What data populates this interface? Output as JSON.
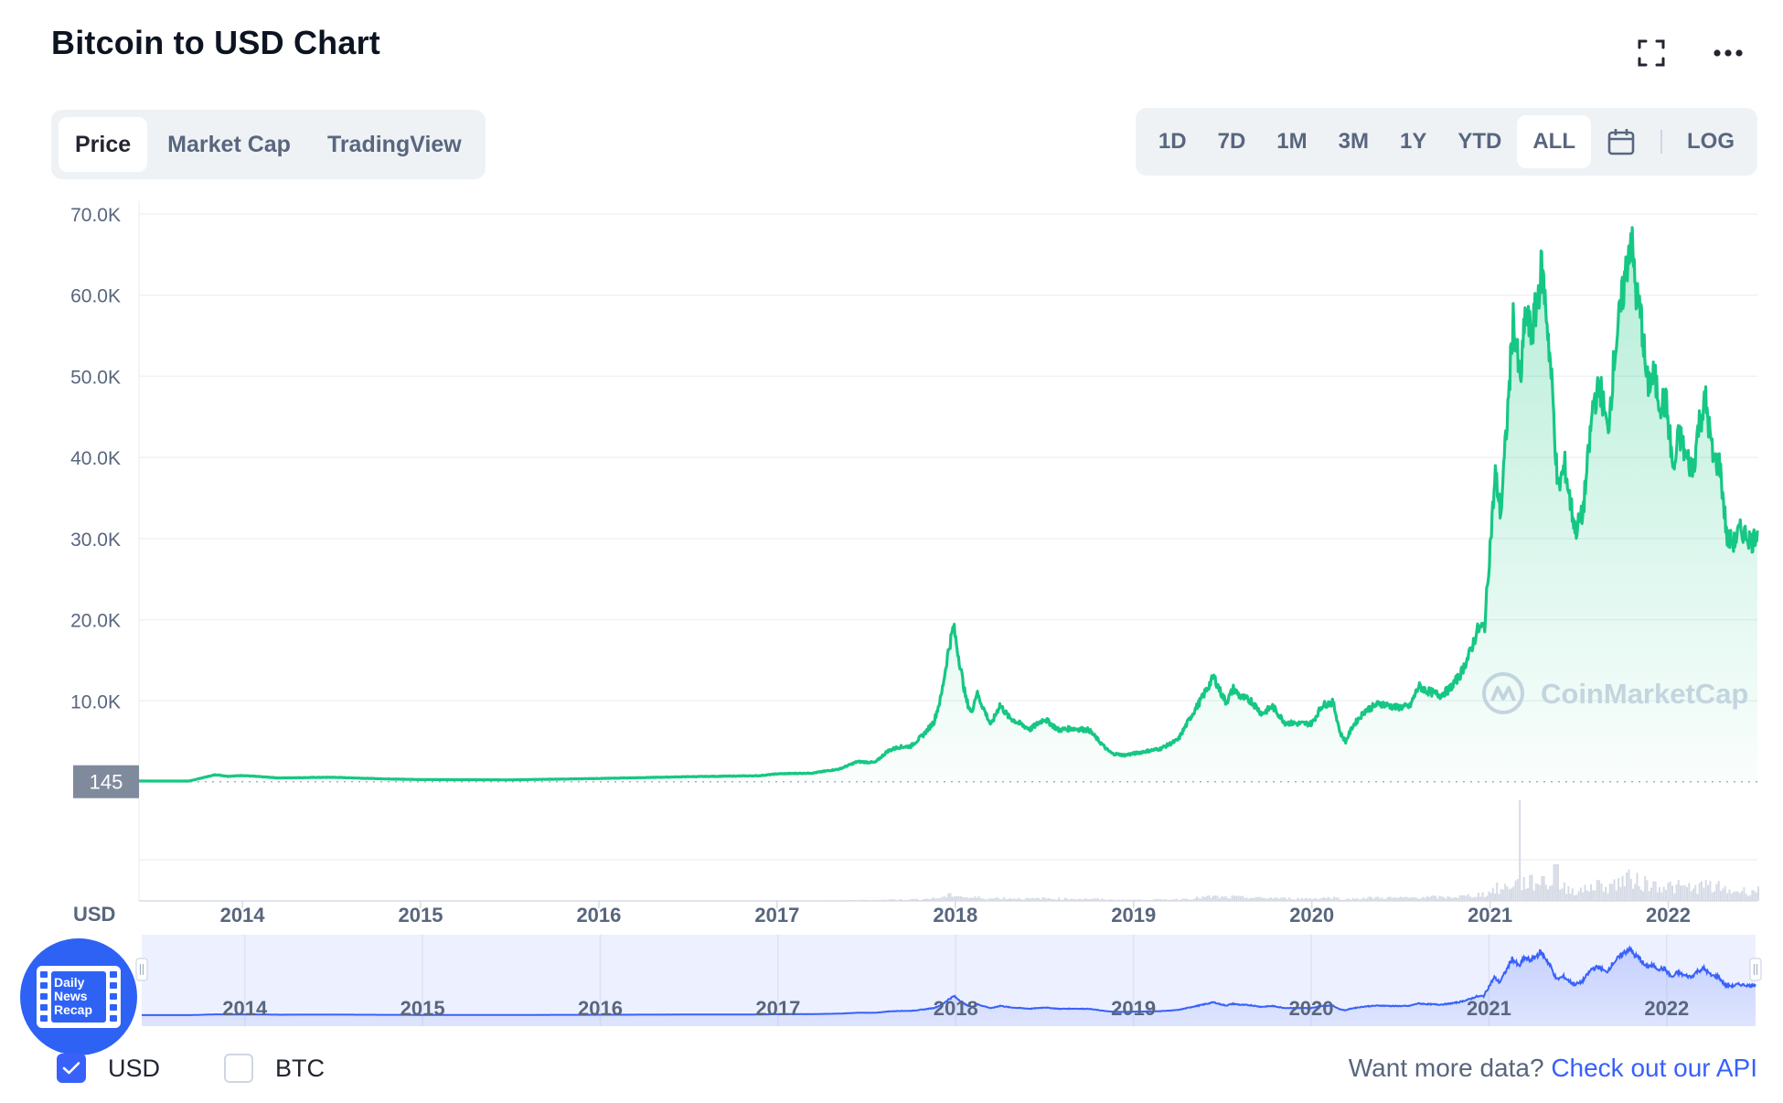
{
  "header": {
    "title": "Bitcoin to USD Chart"
  },
  "icons": {
    "fullscreen": "fullscreen-icon",
    "more": "more-horizontal-icon",
    "calendar": "calendar-icon"
  },
  "tabs": [
    {
      "label": "Price",
      "active": true
    },
    {
      "label": "Market Cap",
      "active": false
    },
    {
      "label": "TradingView",
      "active": false
    }
  ],
  "ranges": [
    {
      "label": "1D",
      "active": false
    },
    {
      "label": "7D",
      "active": false
    },
    {
      "label": "1M",
      "active": false
    },
    {
      "label": "3M",
      "active": false
    },
    {
      "label": "1Y",
      "active": false
    },
    {
      "label": "YTD",
      "active": false
    },
    {
      "label": "ALL",
      "active": true
    }
  ],
  "log_label": "LOG",
  "colors": {
    "line": "#16c784",
    "navigator_line": "#3861fb",
    "accent": "#3861fb",
    "text": "#58667e",
    "price_tag": "#808a9d"
  },
  "watermark": "CoinMarketCap",
  "badge": {
    "line1": "Daily",
    "line2": "News",
    "line3": "Recap"
  },
  "legend": [
    {
      "label": "USD",
      "checked": true
    },
    {
      "label": "BTC",
      "checked": false
    }
  ],
  "footer": {
    "prompt": "Want more data?",
    "link": "Check out our API"
  },
  "chart_data": {
    "type": "area",
    "ylabel": "USD",
    "ylim": [
      0,
      70000
    ],
    "y_ticks": [
      "10.0K",
      "20.0K",
      "30.0K",
      "40.0K",
      "50.0K",
      "60.0K",
      "70.0K"
    ],
    "y_tick_values": [
      10000,
      20000,
      30000,
      40000,
      50000,
      60000,
      70000
    ],
    "x_ticks": [
      "2014",
      "2015",
      "2016",
      "2017",
      "2018",
      "2019",
      "2020",
      "2021",
      "2022"
    ],
    "x_tick_values": [
      2014,
      2015,
      2016,
      2017,
      2018,
      2019,
      2020,
      2021,
      2022
    ],
    "xlim": [
      2013.42,
      2022.5
    ],
    "price_tag": "145",
    "price_tag_value": 145,
    "grid": true,
    "series": [
      {
        "x": [
          2013.42,
          2013.7,
          2013.85,
          2013.92,
          2014.0,
          2014.2,
          2014.5,
          2014.8,
          2015.0,
          2015.5,
          2016.0,
          2016.5,
          2016.9,
          2017.0,
          2017.2,
          2017.35,
          2017.45,
          2017.55,
          2017.62,
          2017.68,
          2017.75,
          2017.82,
          2017.88,
          2017.92,
          2017.96,
          2017.99,
          2018.03,
          2018.06,
          2018.09,
          2018.12,
          2018.16,
          2018.2,
          2018.25,
          2018.3,
          2018.36,
          2018.42,
          2018.5,
          2018.58,
          2018.65,
          2018.75,
          2018.85,
          2018.88,
          2018.95,
          2019.05,
          2019.15,
          2019.25,
          2019.32,
          2019.38,
          2019.45,
          2019.49,
          2019.52,
          2019.56,
          2019.6,
          2019.66,
          2019.72,
          2019.78,
          2019.85,
          2019.92,
          2020.0,
          2020.06,
          2020.12,
          2020.16,
          2020.19,
          2020.23,
          2020.3,
          2020.38,
          2020.47,
          2020.55,
          2020.6,
          2020.65,
          2020.72,
          2020.77,
          2020.83,
          2020.88,
          2020.93,
          2020.97,
          2021.0,
          2021.03,
          2021.06,
          2021.1,
          2021.13,
          2021.17,
          2021.2,
          2021.23,
          2021.26,
          2021.29,
          2021.32,
          2021.35,
          2021.38,
          2021.42,
          2021.45,
          2021.48,
          2021.52,
          2021.55,
          2021.58,
          2021.62,
          2021.66,
          2021.7,
          2021.75,
          2021.79,
          2021.82,
          2021.85,
          2021.88,
          2021.92,
          2021.95,
          2021.99,
          2022.03,
          2022.06,
          2022.1,
          2022.14,
          2022.17,
          2022.21,
          2022.25,
          2022.29,
          2022.33,
          2022.37,
          2022.4,
          2022.44,
          2022.47,
          2022.5
        ],
        "values": [
          120,
          110,
          900,
          700,
          800,
          500,
          580,
          380,
          300,
          260,
          430,
          650,
          770,
          1000,
          1100,
          1600,
          2500,
          2400,
          3800,
          4300,
          4400,
          5800,
          7400,
          10500,
          16000,
          19200,
          14000,
          10200,
          8500,
          11000,
          9000,
          7000,
          9500,
          8000,
          7200,
          6500,
          7800,
          6400,
          6600,
          6400,
          4000,
          3500,
          3300,
          3700,
          4100,
          5200,
          8000,
          10200,
          13000,
          11000,
          9800,
          11500,
          10500,
          10000,
          8400,
          9300,
          7300,
          7200,
          7200,
          9500,
          9800,
          6000,
          5000,
          6900,
          8800,
          9700,
          9200,
          9300,
          11800,
          11200,
          10700,
          11400,
          13100,
          15500,
          18700,
          19300,
          29000,
          38000,
          33000,
          46000,
          57000,
          49000,
          58000,
          55000,
          58500,
          63500,
          57000,
          48000,
          36000,
          39000,
          34500,
          31000,
          33000,
          39800,
          47000,
          48500,
          43000,
          53000,
          61000,
          67500,
          60000,
          57000,
          49000,
          50000,
          47000,
          46500,
          38000,
          43000,
          40000,
          38500,
          44000,
          47000,
          40000,
          39000,
          30000,
          29500,
          31000,
          30500,
          29500,
          31000
        ]
      }
    ]
  }
}
